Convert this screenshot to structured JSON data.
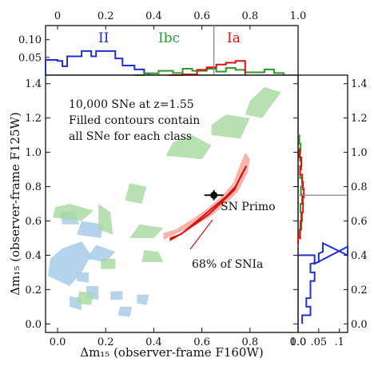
{
  "chart_data": [
    {
      "panel": "top-histogram",
      "type": "histogram",
      "xlim": [
        -0.05,
        1.0
      ],
      "ylim": [
        0,
        0.14
      ],
      "x_ticks": [
        "0",
        "0.2",
        "0.4",
        "0.6",
        "0.8",
        "1.0"
      ],
      "y_ticks": [
        "0.05",
        "0.10"
      ],
      "marker_x": 0.65,
      "series": [
        {
          "name": "II",
          "color": "#1f2fd0",
          "bins": [
            [
              -0.05,
              0.043
            ],
            [
              0.0,
              0.04
            ],
            [
              0.02,
              0.025
            ],
            [
              0.04,
              0.053
            ],
            [
              0.1,
              0.068
            ],
            [
              0.14,
              0.053
            ],
            [
              0.16,
              0.068
            ],
            [
              0.24,
              0.047
            ],
            [
              0.27,
              0.027
            ],
            [
              0.32,
              0.016
            ],
            [
              0.36,
              0.005
            ],
            [
              0.38,
              0.0
            ]
          ]
        },
        {
          "name": "Ibc",
          "color": "#2a9a2a",
          "bins": [
            [
              0.32,
              0.0
            ],
            [
              0.36,
              0.005
            ],
            [
              0.42,
              0.012
            ],
            [
              0.48,
              0.006
            ],
            [
              0.52,
              0.018
            ],
            [
              0.56,
              0.012
            ],
            [
              0.62,
              0.018
            ],
            [
              0.66,
              0.01
            ],
            [
              0.7,
              0.02
            ],
            [
              0.74,
              0.015
            ],
            [
              0.78,
              0.008
            ],
            [
              0.86,
              0.016
            ],
            [
              0.9,
              0.006
            ],
            [
              0.94,
              0.0
            ]
          ]
        },
        {
          "name": "Ia",
          "color": "#e01010",
          "bins": [
            [
              0.46,
              0.0
            ],
            [
              0.52,
              0.002
            ],
            [
              0.58,
              0.015
            ],
            [
              0.62,
              0.022
            ],
            [
              0.66,
              0.03
            ],
            [
              0.7,
              0.035
            ],
            [
              0.74,
              0.04
            ],
            [
              0.78,
              0.0
            ]
          ]
        }
      ]
    },
    {
      "panel": "main-scatter",
      "type": "contour",
      "xlabel": "Δm₁₅ (observer-frame F160W)",
      "ylabel": "Δm₁₅ (observer-frame F125W)",
      "xlim": [
        -0.05,
        1.0
      ],
      "ylim": [
        -0.05,
        1.45
      ],
      "x_ticks": [
        "0.0",
        "0.2",
        "0.4",
        "0.6",
        "0.8",
        "1.0"
      ],
      "y_ticks": [
        "0.0",
        "0.2",
        "0.4",
        "0.6",
        "0.8",
        "1.0",
        "1.2",
        "1.4"
      ],
      "annotation_lines": [
        "10,000 SNe at z=1.55",
        "Filled contours contain",
        "all SNe for each class"
      ],
      "ia_68_label": "68% of SNIa",
      "sn_primo": {
        "label": "SN Primo",
        "x": 0.65,
        "y": 0.75,
        "xerr": 0.04,
        "yerr": 0.03
      },
      "ia_68_contour": [
        [
          0.47,
          0.49
        ],
        [
          0.52,
          0.53
        ],
        [
          0.58,
          0.6
        ],
        [
          0.64,
          0.67
        ],
        [
          0.7,
          0.74
        ],
        [
          0.74,
          0.8
        ],
        [
          0.77,
          0.88
        ],
        [
          0.785,
          0.92
        ],
        [
          0.765,
          0.87
        ],
        [
          0.735,
          0.78
        ],
        [
          0.69,
          0.72
        ],
        [
          0.63,
          0.64
        ],
        [
          0.57,
          0.58
        ],
        [
          0.51,
          0.52
        ],
        [
          0.47,
          0.5
        ]
      ],
      "ia_region": [
        [
          0.44,
          0.49
        ],
        [
          0.5,
          0.53
        ],
        [
          0.58,
          0.58
        ],
        [
          0.64,
          0.63
        ],
        [
          0.7,
          0.7
        ],
        [
          0.75,
          0.77
        ],
        [
          0.79,
          0.88
        ],
        [
          0.8,
          0.96
        ],
        [
          0.78,
          1.0
        ],
        [
          0.76,
          0.93
        ],
        [
          0.73,
          0.82
        ],
        [
          0.68,
          0.74
        ],
        [
          0.62,
          0.67
        ],
        [
          0.56,
          0.61
        ],
        [
          0.49,
          0.55
        ],
        [
          0.44,
          0.53
        ]
      ],
      "ibc_blobs": [
        [
          [
            0.78,
            1.22
          ],
          [
            0.85,
            1.2
          ],
          [
            0.93,
            1.35
          ],
          [
            0.86,
            1.38
          ],
          [
            0.8,
            1.3
          ]
        ],
        [
          [
            0.64,
            1.1
          ],
          [
            0.76,
            1.08
          ],
          [
            0.8,
            1.2
          ],
          [
            0.7,
            1.22
          ],
          [
            0.64,
            1.16
          ]
        ],
        [
          [
            0.45,
            0.98
          ],
          [
            0.6,
            0.96
          ],
          [
            0.64,
            1.04
          ],
          [
            0.56,
            1.1
          ],
          [
            0.48,
            1.06
          ]
        ],
        [
          [
            0.28,
            0.72
          ],
          [
            0.35,
            0.7
          ],
          [
            0.37,
            0.8
          ],
          [
            0.3,
            0.82
          ]
        ],
        [
          [
            0.17,
            0.55
          ],
          [
            0.23,
            0.52
          ],
          [
            0.22,
            0.65
          ],
          [
            0.17,
            0.7
          ]
        ],
        [
          [
            0.3,
            0.5
          ],
          [
            0.4,
            0.5
          ],
          [
            0.44,
            0.56
          ],
          [
            0.34,
            0.58
          ]
        ],
        [
          [
            -0.02,
            0.62
          ],
          [
            0.1,
            0.6
          ],
          [
            0.15,
            0.66
          ],
          [
            0.05,
            0.7
          ],
          [
            -0.01,
            0.68
          ]
        ],
        [
          [
            0.35,
            0.36
          ],
          [
            0.44,
            0.36
          ],
          [
            0.42,
            0.42
          ],
          [
            0.36,
            0.43
          ]
        ],
        [
          [
            0.18,
            0.32
          ],
          [
            0.24,
            0.32
          ],
          [
            0.24,
            0.38
          ],
          [
            0.18,
            0.38
          ]
        ],
        [
          [
            0.08,
            0.12
          ],
          [
            0.14,
            0.11
          ],
          [
            0.15,
            0.18
          ],
          [
            0.09,
            0.19
          ]
        ]
      ],
      "ii_blobs": [
        [
          [
            -0.04,
            0.28
          ],
          [
            0.05,
            0.22
          ],
          [
            0.1,
            0.3
          ],
          [
            0.14,
            0.4
          ],
          [
            0.1,
            0.48
          ],
          [
            0.02,
            0.44
          ],
          [
            -0.03,
            0.38
          ]
        ],
        [
          [
            0.08,
            0.52
          ],
          [
            0.18,
            0.5
          ],
          [
            0.19,
            0.58
          ],
          [
            0.1,
            0.6
          ]
        ],
        [
          [
            0.02,
            0.58
          ],
          [
            0.09,
            0.58
          ],
          [
            0.07,
            0.66
          ],
          [
            0.01,
            0.65
          ]
        ],
        [
          [
            0.12,
            0.38
          ],
          [
            0.2,
            0.36
          ],
          [
            0.24,
            0.42
          ],
          [
            0.16,
            0.46
          ]
        ],
        [
          [
            0.05,
            0.1
          ],
          [
            0.1,
            0.08
          ],
          [
            0.1,
            0.15
          ],
          [
            0.05,
            0.16
          ]
        ],
        [
          [
            0.12,
            0.15
          ],
          [
            0.17,
            0.14
          ],
          [
            0.17,
            0.22
          ],
          [
            0.12,
            0.22
          ]
        ],
        [
          [
            0.22,
            0.14
          ],
          [
            0.27,
            0.14
          ],
          [
            0.27,
            0.19
          ],
          [
            0.22,
            0.19
          ]
        ],
        [
          [
            0.08,
            0.25
          ],
          [
            0.13,
            0.24
          ],
          [
            0.13,
            0.3
          ],
          [
            0.08,
            0.3
          ]
        ],
        [
          [
            0.25,
            0.05
          ],
          [
            0.3,
            0.04
          ],
          [
            0.31,
            0.1
          ],
          [
            0.26,
            0.1
          ]
        ],
        [
          [
            0.33,
            0.12
          ],
          [
            0.37,
            0.11
          ],
          [
            0.38,
            0.17
          ],
          [
            0.33,
            0.17
          ]
        ]
      ]
    },
    {
      "panel": "right-histogram",
      "type": "histogram",
      "orientation": "horizontal",
      "xlim": [
        0,
        0.12
      ],
      "x_ticks": [
        "0.0",
        ".05",
        ".1"
      ],
      "marker_y": 0.75,
      "series": [
        {
          "name": "II",
          "color": "#1f2fd0",
          "bins": [
            [
              0.35,
              0.04
            ],
            [
              0.4,
              0.12
            ],
            [
              0.42,
              0.06
            ],
            [
              0.36,
              0.05
            ],
            [
              0.3,
              0.03
            ],
            [
              0.25,
              0.04
            ],
            [
              0.2,
              0.03
            ],
            [
              0.15,
              0.03
            ],
            [
              0.1,
              0.02
            ],
            [
              0.05,
              0.03
            ],
            [
              0.0,
              0.01
            ]
          ]
        },
        {
          "name": "Ibc",
          "color": "#2a9a2a",
          "bins": [
            [
              1.05,
              0.003
            ],
            [
              1.0,
              0.006
            ],
            [
              0.95,
              0.005
            ],
            [
              0.9,
              0.008
            ],
            [
              0.85,
              0.005
            ],
            [
              0.8,
              0.01
            ],
            [
              0.75,
              0.007
            ],
            [
              0.7,
              0.012
            ],
            [
              0.65,
              0.006
            ],
            [
              0.6,
              0.01
            ],
            [
              0.55,
              0.008
            ],
            [
              0.5,
              0.004
            ],
            [
              0.45,
              0.0
            ]
          ]
        },
        {
          "name": "Ia",
          "color": "#e01010",
          "bins": [
            [
              0.97,
              0.003
            ],
            [
              0.92,
              0.008
            ],
            [
              0.87,
              0.005
            ],
            [
              0.82,
              0.01
            ],
            [
              0.78,
              0.012
            ],
            [
              0.74,
              0.014
            ],
            [
              0.7,
              0.01
            ],
            [
              0.65,
              0.012
            ],
            [
              0.6,
              0.008
            ],
            [
              0.55,
              0.006
            ],
            [
              0.5,
              0.005
            ],
            [
              0.46,
              0.0
            ]
          ]
        }
      ]
    }
  ]
}
